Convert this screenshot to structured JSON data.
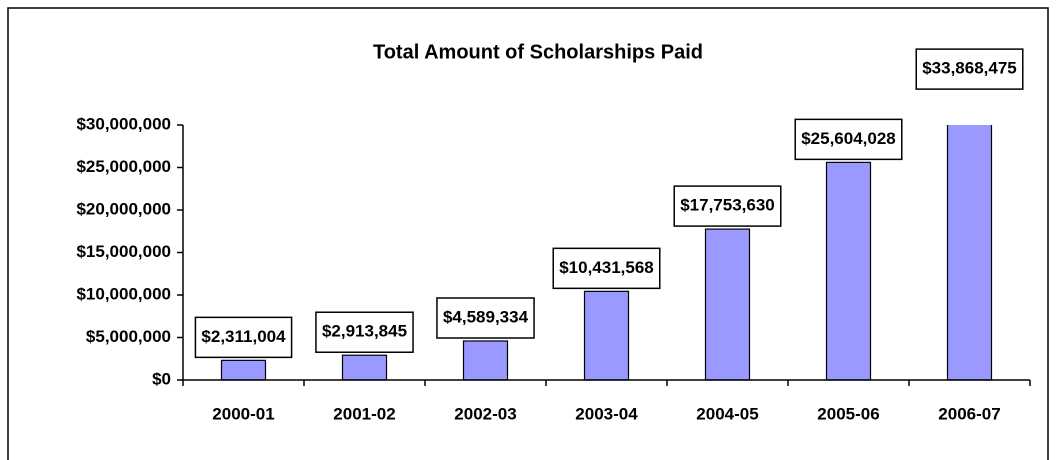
{
  "chart_data": {
    "type": "bar",
    "title": "Total Amount of Scholarships Paid",
    "categories": [
      "2000-01",
      "2001-02",
      "2002-03",
      "2003-04",
      "2004-05",
      "2005-06",
      "2006-07"
    ],
    "values": [
      2311004,
      2913845,
      4589334,
      10431568,
      17753630,
      25604028,
      33868475
    ],
    "value_labels": [
      "$2,311,004",
      "$2,913,845",
      "$4,589,334",
      "$10,431,568",
      "$17,753,630",
      "$25,604,028",
      "$33,868,475"
    ],
    "color": "#9999ff",
    "ylim": [
      0,
      30000000
    ],
    "yticks": [
      {
        "value": 0,
        "label": "$0"
      },
      {
        "value": 5000000,
        "label": "$5,000,000"
      },
      {
        "value": 10000000,
        "label": "$10,000,000"
      },
      {
        "value": 15000000,
        "label": "$15,000,000"
      },
      {
        "value": 20000000,
        "label": "$20,000,000"
      },
      {
        "value": 25000000,
        "label": "$25,000,000"
      },
      {
        "value": 30000000,
        "label": "$30,000,000"
      }
    ]
  }
}
